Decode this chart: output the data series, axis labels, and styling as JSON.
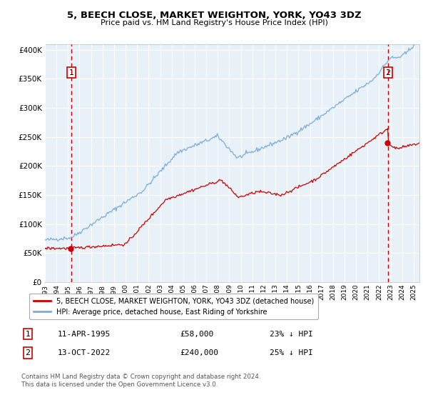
{
  "title": "5, BEECH CLOSE, MARKET WEIGHTON, YORK, YO43 3DZ",
  "subtitle": "Price paid vs. HM Land Registry's House Price Index (HPI)",
  "sale1": {
    "date_label": "11-APR-1995",
    "price": 58000,
    "pct_label": "23% ↓ HPI",
    "x_year": 1995.28
  },
  "sale2": {
    "date_label": "13-OCT-2022",
    "price": 240000,
    "pct_label": "25% ↓ HPI",
    "x_year": 2022.78
  },
  "yticks": [
    0,
    50000,
    100000,
    150000,
    200000,
    250000,
    300000,
    350000,
    400000
  ],
  "xlim": [
    1993.0,
    2025.5
  ],
  "ylim": [
    0,
    410000
  ],
  "bg_color": "#e8f0f8",
  "hatch_color": "#b8c8d8",
  "grid_color": "#ffffff",
  "red_color": "#cc0000",
  "blue_color": "#7aaddb",
  "legend_label_red": "5, BEECH CLOSE, MARKET WEIGHTON, YORK, YO43 3DZ (detached house)",
  "legend_label_blue": "HPI: Average price, detached house, East Riding of Yorkshire",
  "footnote": "Contains HM Land Registry data © Crown copyright and database right 2024.\nThis data is licensed under the Open Government Licence v3.0."
}
